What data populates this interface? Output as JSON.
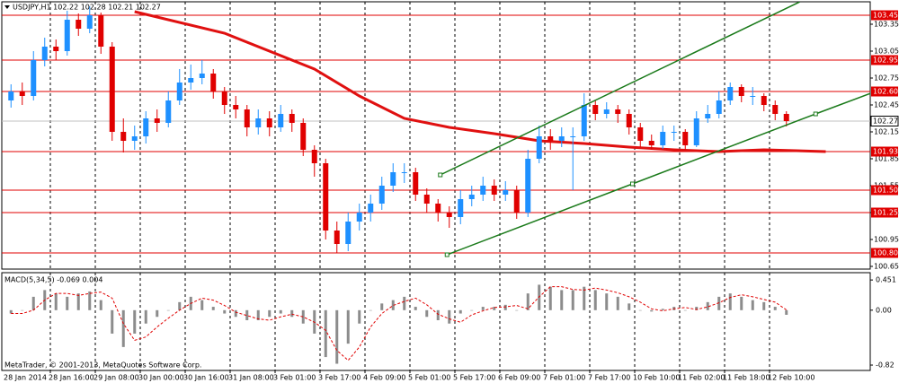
{
  "chart_data": [
    {
      "type": "candlestick",
      "title": "USDJPY,H1  102.22 102.28 102.21 102.27",
      "up_color": "#1e90ff",
      "down_color": "#e00000",
      "open": [
        102.5,
        102.6,
        102.55,
        102.95,
        103.1,
        103.05,
        103.4,
        103.3,
        103.45,
        103.1,
        102.15,
        102.05,
        102.1,
        102.3,
        102.25,
        102.5,
        102.7,
        102.75,
        102.8,
        102.6,
        102.45,
        102.4,
        102.2,
        102.3,
        102.2,
        102.35,
        102.25,
        101.95,
        101.8,
        101.05,
        100.9,
        101.15,
        101.25,
        101.35,
        101.55,
        101.7,
        101.7,
        101.45,
        101.35,
        101.25,
        101.2,
        101.4,
        101.45,
        101.55,
        101.45,
        101.5,
        101.25,
        101.85,
        102.1,
        102.05,
        102.1,
        102.1,
        102.45,
        102.35,
        102.4,
        102.35,
        102.2,
        102.05,
        102.0,
        102.15,
        102.15,
        102.0,
        102.3,
        102.35,
        102.5,
        102.65,
        102.55,
        102.55,
        102.45,
        102.35
      ],
      "high": [
        102.68,
        102.7,
        103.05,
        103.2,
        103.18,
        103.5,
        103.47,
        103.55,
        103.48,
        103.15,
        102.3,
        102.22,
        102.38,
        102.4,
        102.6,
        102.85,
        102.9,
        102.95,
        102.85,
        102.65,
        102.55,
        102.45,
        102.4,
        102.38,
        102.45,
        102.4,
        102.3,
        102.0,
        101.85,
        101.15,
        101.25,
        101.35,
        101.45,
        101.65,
        101.8,
        101.8,
        101.75,
        101.52,
        101.4,
        101.32,
        101.5,
        101.55,
        101.65,
        101.62,
        101.6,
        101.55,
        101.95,
        102.22,
        102.18,
        102.2,
        102.2,
        102.58,
        102.5,
        102.48,
        102.45,
        102.4,
        102.25,
        102.12,
        102.22,
        102.22,
        102.18,
        102.38,
        102.45,
        102.6,
        102.7,
        102.68,
        102.65,
        102.58,
        102.5,
        102.38
      ],
      "low": [
        102.42,
        102.45,
        102.5,
        102.88,
        102.95,
        103.0,
        103.22,
        103.25,
        103.02,
        102.05,
        101.92,
        101.95,
        102.02,
        102.15,
        102.2,
        102.45,
        102.62,
        102.68,
        102.52,
        102.35,
        102.3,
        102.1,
        102.12,
        102.1,
        102.15,
        102.15,
        101.88,
        101.65,
        100.95,
        100.8,
        100.82,
        101.05,
        101.15,
        101.28,
        101.48,
        101.58,
        101.38,
        101.25,
        101.15,
        101.08,
        101.12,
        101.32,
        101.38,
        101.38,
        101.38,
        101.18,
        101.2,
        101.8,
        101.95,
        101.98,
        101.5,
        102.05,
        102.28,
        102.3,
        102.25,
        102.12,
        101.98,
        101.95,
        101.96,
        102.05,
        101.95,
        101.98,
        102.25,
        102.3,
        102.45,
        102.48,
        102.45,
        102.38,
        102.28,
        102.21
      ],
      "close": [
        102.6,
        102.55,
        102.95,
        103.1,
        103.05,
        103.4,
        103.3,
        103.45,
        103.1,
        102.15,
        102.05,
        102.1,
        102.3,
        102.25,
        102.5,
        102.7,
        102.75,
        102.8,
        102.6,
        102.45,
        102.4,
        102.2,
        102.3,
        102.2,
        102.35,
        102.25,
        101.95,
        101.8,
        101.05,
        100.9,
        101.15,
        101.25,
        101.35,
        101.55,
        101.7,
        101.7,
        101.45,
        101.35,
        101.25,
        101.2,
        101.4,
        101.45,
        101.55,
        101.45,
        101.5,
        101.25,
        101.85,
        102.1,
        102.05,
        102.1,
        102.1,
        102.45,
        102.35,
        102.4,
        102.35,
        102.2,
        102.05,
        102.0,
        102.15,
        102.15,
        102.0,
        102.3,
        102.35,
        102.5,
        102.65,
        102.55,
        102.55,
        102.45,
        102.35,
        102.27
      ],
      "ma": {
        "color": "#e01010",
        "x": [
          11.5,
          19.5,
          27.5,
          31.5,
          35.5,
          39.5,
          43.5,
          47.5,
          51.5,
          55.5,
          59.5,
          63.5,
          67.5,
          73
        ],
        "values": [
          103.49,
          103.25,
          102.85,
          102.55,
          102.3,
          102.2,
          102.13,
          102.05,
          102.02,
          101.98,
          101.95,
          101.93,
          101.95,
          101.93
        ]
      },
      "trendlines": [
        {
          "color": "#1a7a1a",
          "x": [
            38.7,
            70.7
          ],
          "values": [
            101.67,
            103.6
          ]
        },
        {
          "color": "#1a7a1a",
          "x": [
            39.3,
            55.8,
            72.1,
            77
          ],
          "values": [
            100.78,
            101.57,
            102.35,
            102.58
          ]
        }
      ],
      "levels": [
        103.45,
        102.95,
        {
          "value": 102.6,
          "label": "102.60"
        },
        101.93,
        {
          "value": 101.5,
          "label": "101.50"
        },
        101.25,
        {
          "value": 100.8,
          "label": "100.80"
        }
      ],
      "level_color": "#e00000",
      "last_price": 102.27,
      "ylim": [
        100.62,
        103.6
      ],
      "yticks": [
        103.35,
        103.05,
        102.75,
        102.45,
        102.15,
        101.85,
        101.55,
        101.25,
        100.95,
        100.65
      ],
      "xlim": [
        -0.32,
        76.96
      ],
      "xticks": [
        {
          "value": 0,
          "label": "28 Jan 2014"
        },
        {
          "value": 4,
          "label": "28 Jan 16:00"
        },
        {
          "value": 8,
          "label": "29 Jan 08:00"
        },
        {
          "value": 12,
          "label": "30 Jan 00:00"
        },
        {
          "value": 16,
          "label": "30 Jan 16:00"
        },
        {
          "value": 20,
          "label": "31 Jan 08:00"
        },
        {
          "value": 24,
          "label": "3 Feb 01:00"
        },
        {
          "value": 28,
          "label": "3 Feb 17:00"
        },
        {
          "value": 32,
          "label": "4 Feb 09:00"
        },
        {
          "value": 36,
          "label": "5 Feb 01:00"
        },
        {
          "value": 40,
          "label": "5 Feb 17:00"
        },
        {
          "value": 44,
          "label": "6 Feb 09:00"
        },
        {
          "value": 48,
          "label": "7 Feb 01:00"
        },
        {
          "value": 52,
          "label": "7 Feb 17:00"
        },
        {
          "value": 56,
          "label": "10 Feb 10:00"
        },
        {
          "value": 60,
          "label": "11 Feb 02:00"
        },
        {
          "value": 64,
          "label": "11 Feb 18:00"
        },
        {
          "value": 68,
          "label": "12 Feb 10:00"
        }
      ]
    },
    {
      "type": "macd",
      "title": "MACD(5,34,5) -0.069 0.004",
      "watermark": "MetaTrader, © 2001-2013, MetaQuotes Software Corp.",
      "histogram_color": "#8c8c8c",
      "signal_color": "#e00000",
      "histogram": [
        -0.05,
        0.0,
        0.2,
        0.3,
        0.25,
        0.2,
        0.25,
        0.28,
        0.15,
        -0.35,
        -0.55,
        -0.35,
        -0.2,
        -0.1,
        0.0,
        0.12,
        0.2,
        0.15,
        0.05,
        -0.05,
        -0.1,
        -0.15,
        -0.15,
        -0.1,
        -0.05,
        -0.1,
        -0.2,
        -0.35,
        -0.7,
        -0.8,
        -0.5,
        -0.2,
        0.0,
        0.1,
        0.15,
        0.2,
        0.05,
        -0.1,
        -0.15,
        -0.2,
        -0.05,
        0.0,
        0.05,
        0.05,
        0.08,
        0.0,
        0.25,
        0.38,
        0.35,
        0.3,
        0.3,
        0.35,
        0.3,
        0.25,
        0.2,
        0.1,
        0.0,
        -0.02,
        0.02,
        0.05,
        0.0,
        0.05,
        0.12,
        0.2,
        0.25,
        0.2,
        0.15,
        0.12,
        0.05,
        -0.069
      ],
      "signal": [
        -0.05,
        -0.05,
        0.0,
        0.15,
        0.25,
        0.25,
        0.22,
        0.25,
        0.27,
        0.18,
        -0.2,
        -0.45,
        -0.4,
        -0.25,
        -0.12,
        0.0,
        0.1,
        0.18,
        0.15,
        0.07,
        -0.03,
        -0.08,
        -0.13,
        -0.15,
        -0.1,
        -0.06,
        -0.1,
        -0.18,
        -0.3,
        -0.6,
        -0.75,
        -0.55,
        -0.25,
        -0.05,
        0.07,
        0.13,
        0.18,
        0.08,
        -0.06,
        -0.13,
        -0.18,
        -0.07,
        -0.01,
        0.04,
        0.05,
        0.07,
        0.02,
        0.2,
        0.35,
        0.35,
        0.31,
        0.3,
        0.33,
        0.3,
        0.26,
        0.2,
        0.12,
        0.02,
        -0.01,
        0.02,
        0.04,
        0.01,
        0.05,
        0.11,
        0.19,
        0.23,
        0.2,
        0.16,
        0.12,
        0.004
      ],
      "ylim": [
        -0.9,
        0.56
      ],
      "yticks": [
        0.451,
        {
          "value": 0,
          "label": "0.00"
        },
        -0.82
      ]
    }
  ]
}
